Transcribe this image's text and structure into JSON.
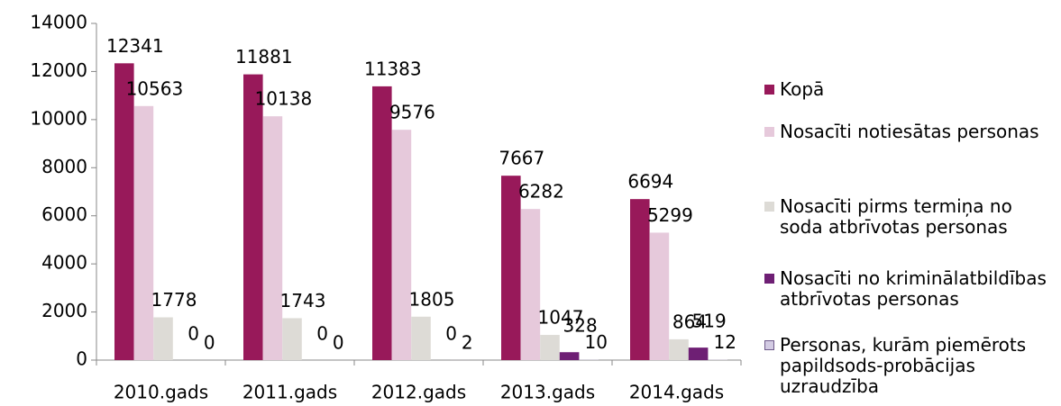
{
  "chart_data": {
    "type": "bar",
    "categories": [
      "2010.gads",
      "2011.gads",
      "2012.gads",
      "2013.gads",
      "2014.gads"
    ],
    "series": [
      {
        "name": "Kopā",
        "color": "#98195a",
        "values": [
          12341,
          11881,
          11383,
          7667,
          6694
        ]
      },
      {
        "name": "Nosacīti notiesātas personas",
        "color": "#e6c9db",
        "values": [
          10563,
          10138,
          9576,
          6282,
          5299
        ]
      },
      {
        "name": "Nosacīti pirms termiņa no soda atbrīvotas personas",
        "color": "#dddbd6",
        "values": [
          1778,
          1743,
          1805,
          1047,
          864
        ]
      },
      {
        "name": "Nosacīti no kriminālatbildības atbrīvotas personas",
        "color": "#6e1f74",
        "values": [
          0,
          0,
          0,
          328,
          519
        ]
      },
      {
        "name": "Personas, kurām piemērots papildsods-probācijas uzraudzība",
        "color": "#d3cbe3",
        "values": [
          0,
          0,
          2,
          10,
          12
        ]
      }
    ],
    "ylim": [
      0,
      14000
    ],
    "yticks": [
      0,
      2000,
      4000,
      6000,
      8000,
      10000,
      12000,
      14000
    ],
    "legend": "right"
  }
}
